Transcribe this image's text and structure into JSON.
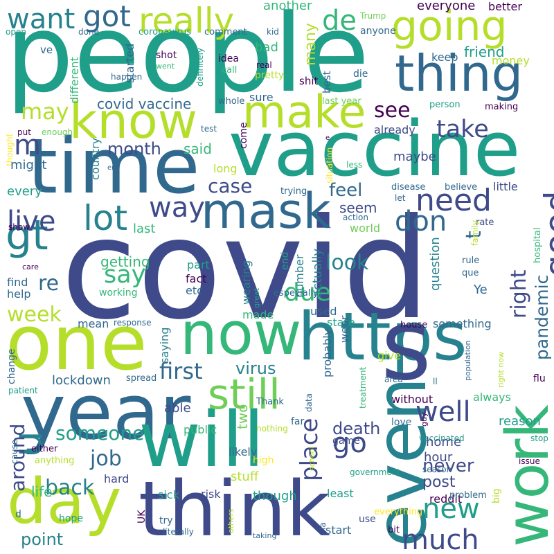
{
  "title": "Word cloud",
  "palette": {
    "dark_purple": "#440154",
    "indigo": "#3e4a89",
    "blue": "#31688e",
    "teal_blue": "#26828e",
    "teal": "#1f9e89",
    "green": "#35b779",
    "lime": "#6ece58",
    "yellow_green": "#b5de2b",
    "yellow": "#fde725"
  },
  "words": [
    {
      "text": "covid",
      "color": "#3e4a89"
    },
    {
      "text": "people",
      "color": "#1f9e89"
    },
    {
      "text": "vaccine",
      "color": "#1f9e89"
    },
    {
      "text": "time",
      "color": "#31688e"
    },
    {
      "text": "year",
      "color": "#31688e"
    },
    {
      "text": "will",
      "color": "#1f9e89"
    },
    {
      "text": "think",
      "color": "#3e4a89"
    },
    {
      "text": "https",
      "color": "#26828e"
    },
    {
      "text": "one",
      "color": "#b5de2b"
    },
    {
      "text": "now",
      "color": "#35b779"
    },
    {
      "text": "s",
      "color": "#3e4a89"
    },
    {
      "text": "even",
      "color": "#26828e"
    },
    {
      "text": "work",
      "color": "#35b779"
    },
    {
      "text": "day",
      "color": "#b5de2b"
    },
    {
      "text": "still",
      "color": "#6ece58"
    },
    {
      "text": "mask",
      "color": "#31688e"
    },
    {
      "text": "know",
      "color": "#b5de2b"
    },
    {
      "text": "make",
      "color": "#b5de2b"
    },
    {
      "text": "thing",
      "color": "#31688e"
    },
    {
      "text": "going",
      "color": "#b5de2b"
    },
    {
      "text": "gt",
      "color": "#26828e"
    },
    {
      "text": "u",
      "color": "#26828e"
    },
    {
      "text": "really",
      "color": "#b5de2b"
    },
    {
      "text": "want",
      "color": "#26828e"
    },
    {
      "text": "got",
      "color": "#31688e"
    },
    {
      "text": "de",
      "color": "#35b779"
    },
    {
      "text": "lot",
      "color": "#26828e"
    },
    {
      "text": "live",
      "color": "#3e4a89"
    },
    {
      "text": "way",
      "color": "#3e4a89"
    },
    {
      "text": "need",
      "color": "#3e4a89"
    },
    {
      "text": "t",
      "color": "#31688e"
    },
    {
      "text": "don",
      "color": "#31688e"
    },
    {
      "text": "good",
      "color": "#3e4a89"
    },
    {
      "text": "see",
      "color": "#440154"
    },
    {
      "text": "take",
      "color": "#3e4a89"
    },
    {
      "text": "m",
      "color": "#3e4a89"
    },
    {
      "text": "may",
      "color": "#b5de2b"
    },
    {
      "text": "covid vaccine",
      "color": "#31688e"
    },
    {
      "text": "first",
      "color": "#31688e"
    },
    {
      "text": "much",
      "color": "#3e4a89"
    },
    {
      "text": "well",
      "color": "#3e4a89"
    },
    {
      "text": "new",
      "color": "#1f9e89"
    },
    {
      "text": "go",
      "color": "#3e4a89"
    },
    {
      "text": "someone",
      "color": "#1f9e89"
    },
    {
      "text": "around",
      "color": "#3e4a89"
    },
    {
      "text": "due",
      "color": "#35b779"
    },
    {
      "text": "say",
      "color": "#35b779"
    },
    {
      "text": "re",
      "color": "#31688e"
    },
    {
      "text": "week",
      "color": "#b5de2b"
    },
    {
      "text": "job",
      "color": "#31688e"
    },
    {
      "text": "back",
      "color": "#26828e"
    },
    {
      "text": "point",
      "color": "#26828e"
    },
    {
      "text": "place",
      "color": "#3e4a89"
    },
    {
      "text": "virus",
      "color": "#26828e"
    },
    {
      "text": "look",
      "color": "#26828e"
    },
    {
      "text": "feel",
      "color": "#31688e"
    },
    {
      "text": "case",
      "color": "#3e4a89"
    },
    {
      "text": "month",
      "color": "#3e4a89"
    },
    {
      "text": "said",
      "color": "#35b779"
    },
    {
      "text": "right",
      "color": "#3e4a89"
    },
    {
      "text": "pandemic",
      "color": "#31688e"
    },
    {
      "text": "never",
      "color": "#3e4a89"
    },
    {
      "text": "death",
      "color": "#3e4a89"
    },
    {
      "text": "life",
      "color": "#35b779"
    },
    {
      "text": "post",
      "color": "#3e4a89"
    },
    {
      "text": "another",
      "color": "#35b779"
    },
    {
      "text": "everyone",
      "color": "#440154"
    },
    {
      "text": "better",
      "color": "#440154"
    },
    {
      "text": "Trump",
      "color": "#6ece58"
    },
    {
      "text": "anyone",
      "color": "#31688e"
    },
    {
      "text": "open",
      "color": "#1f9e89"
    },
    {
      "text": "done",
      "color": "#31688e"
    },
    {
      "text": "coronavirus",
      "color": "#1f9e89"
    },
    {
      "text": "comment",
      "color": "#31688e"
    },
    {
      "text": "kid",
      "color": "#31688e"
    },
    {
      "text": "ve",
      "color": "#31688e"
    },
    {
      "text": "different",
      "color": "#35b779"
    },
    {
      "text": "started",
      "color": "#31688e"
    },
    {
      "text": "shot",
      "color": "#440154"
    },
    {
      "text": "went",
      "color": "#35b779"
    },
    {
      "text": "definitely",
      "color": "#1f9e89"
    },
    {
      "text": "idea",
      "color": "#440154"
    },
    {
      "text": "call",
      "color": "#35b779"
    },
    {
      "text": "real",
      "color": "#440154"
    },
    {
      "text": "pretty",
      "color": "#b5de2b"
    },
    {
      "text": "shit",
      "color": "#440154"
    },
    {
      "text": "bad",
      "color": "#35b779"
    },
    {
      "text": "many",
      "color": "#b5de2b"
    },
    {
      "text": "best",
      "color": "#31688e"
    },
    {
      "text": "die",
      "color": "#31688e"
    },
    {
      "text": "keep",
      "color": "#31688e"
    },
    {
      "text": "friend",
      "color": "#1f9e89"
    },
    {
      "text": "money",
      "color": "#b5de2b"
    },
    {
      "text": "happen",
      "color": "#31688e"
    },
    {
      "text": "whole",
      "color": "#31688e"
    },
    {
      "text": "sure",
      "color": "#31688e"
    },
    {
      "text": "last year",
      "color": "#6ece58"
    },
    {
      "text": "person",
      "color": "#1f9e89"
    },
    {
      "text": "making",
      "color": "#440154"
    },
    {
      "text": "put",
      "color": "#440154"
    },
    {
      "text": "enough",
      "color": "#6ece58"
    },
    {
      "text": "test",
      "color": "#31688e"
    },
    {
      "text": "come",
      "color": "#440154"
    },
    {
      "text": "already",
      "color": "#3e4a89"
    },
    {
      "text": "e",
      "color": "#440154"
    },
    {
      "text": "thought",
      "color": "#fde725"
    },
    {
      "text": "might",
      "color": "#31688e"
    },
    {
      "text": "en",
      "color": "#31688e"
    },
    {
      "text": "country",
      "color": "#26828e"
    },
    {
      "text": "long",
      "color": "#b5de2b"
    },
    {
      "text": "less",
      "color": "#35b779"
    },
    {
      "text": "maybe",
      "color": "#3e4a89"
    },
    {
      "text": "situation",
      "color": "#fde725"
    },
    {
      "text": "every",
      "color": "#1f9e89"
    },
    {
      "text": "trying",
      "color": "#31688e"
    },
    {
      "text": "disease",
      "color": "#31688e"
    },
    {
      "text": "believe",
      "color": "#31688e"
    },
    {
      "text": "little",
      "color": "#3e4a89"
    },
    {
      "text": "let",
      "color": "#31688e"
    },
    {
      "text": "seem",
      "color": "#3e4a89"
    },
    {
      "text": "action",
      "color": "#31688e"
    },
    {
      "text": "rate",
      "color": "#3e4a89"
    },
    {
      "text": "show",
      "color": "#440154"
    },
    {
      "text": "last",
      "color": "#35b779"
    },
    {
      "text": "world",
      "color": "#6ece58"
    },
    {
      "text": "hospital",
      "color": "#35b779"
    },
    {
      "text": "family",
      "color": "#b5de2b"
    },
    {
      "text": "part",
      "color": "#1f9e89"
    },
    {
      "text": "getting",
      "color": "#35b779"
    },
    {
      "text": "end",
      "color": "#1f9e89"
    },
    {
      "text": "number",
      "color": "#26828e"
    },
    {
      "text": "actually",
      "color": "#26828e"
    },
    {
      "text": "question",
      "color": "#26828e"
    },
    {
      "text": "rule",
      "color": "#31688e"
    },
    {
      "text": "que",
      "color": "#31688e"
    },
    {
      "text": "care",
      "color": "#440154"
    },
    {
      "text": "find",
      "color": "#31688e"
    },
    {
      "text": "fact",
      "color": "#440154"
    },
    {
      "text": "etc",
      "color": "#31688e"
    },
    {
      "text": "wearing",
      "color": "#26828e"
    },
    {
      "text": "especially",
      "color": "#31688e"
    },
    {
      "text": "help",
      "color": "#31688e"
    },
    {
      "text": "working",
      "color": "#35b779"
    },
    {
      "text": "great",
      "color": "#1f9e89"
    },
    {
      "text": "used",
      "color": "#31688e"
    },
    {
      "text": "Ye",
      "color": "#31688e"
    },
    {
      "text": "made",
      "color": "#35b779"
    },
    {
      "text": "mean",
      "color": "#31688e"
    },
    {
      "text": "response",
      "color": "#31688e"
    },
    {
      "text": "state",
      "color": "#1f9e89"
    },
    {
      "text": "something",
      "color": "#31688e"
    },
    {
      "text": "house",
      "color": "#440154"
    },
    {
      "text": "saying",
      "color": "#26828e"
    },
    {
      "text": "change",
      "color": "#31688e"
    },
    {
      "text": "wear",
      "color": "#31688e"
    },
    {
      "text": "give",
      "color": "#b5de2b"
    },
    {
      "text": "population",
      "color": "#31688e"
    },
    {
      "text": "right now",
      "color": "#b5de2b"
    },
    {
      "text": "lockdown",
      "color": "#31688e"
    },
    {
      "text": "spread",
      "color": "#31688e"
    },
    {
      "text": "patient",
      "color": "#1f9e89"
    },
    {
      "text": "treatment",
      "color": "#35b779"
    },
    {
      "text": "area",
      "color": "#31688e"
    },
    {
      "text": "ll",
      "color": "#31688e"
    },
    {
      "text": "flu",
      "color": "#440154"
    },
    {
      "text": "probably",
      "color": "#31688e"
    },
    {
      "text": "always",
      "color": "#35b779"
    },
    {
      "text": "Thank",
      "color": "#31688e"
    },
    {
      "text": "data",
      "color": "#31688e"
    },
    {
      "text": "able",
      "color": "#3e4a89"
    },
    {
      "text": "without",
      "color": "#440154"
    },
    {
      "text": "two",
      "color": "#6ece58"
    },
    {
      "text": "far",
      "color": "#31688e"
    },
    {
      "text": "reason",
      "color": "#1f9e89"
    },
    {
      "text": "love",
      "color": "#31688e"
    },
    {
      "text": "guy",
      "color": "#440154"
    },
    {
      "text": "stop",
      "color": "#1f9e89"
    },
    {
      "text": "public",
      "color": "#35b779"
    },
    {
      "text": "nothing",
      "color": "#b5de2b"
    },
    {
      "text": "vaccinated",
      "color": "#1f9e89"
    },
    {
      "text": "cause",
      "color": "#31688e"
    },
    {
      "text": "either",
      "color": "#440154"
    },
    {
      "text": "anything",
      "color": "#b5de2b"
    },
    {
      "text": "game",
      "color": "#3e4a89"
    },
    {
      "text": "home",
      "color": "#3e4a89"
    },
    {
      "text": "hour",
      "color": "#3e4a89"
    },
    {
      "text": "likely",
      "color": "#31688e"
    },
    {
      "text": "high",
      "color": "#fde725"
    },
    {
      "text": "school",
      "color": "#b5de2b"
    },
    {
      "text": "season",
      "color": "#31688e"
    },
    {
      "text": "issue",
      "color": "#440154"
    },
    {
      "text": "hard",
      "color": "#3e4a89"
    },
    {
      "text": "stuff",
      "color": "#b5de2b"
    },
    {
      "text": "government",
      "color": "#1f9e89"
    },
    {
      "text": "big",
      "color": "#b5de2b"
    },
    {
      "text": "sick",
      "color": "#1f9e89"
    },
    {
      "text": "risk",
      "color": "#3e4a89"
    },
    {
      "text": "though",
      "color": "#1f9e89"
    },
    {
      "text": "least",
      "color": "#1f9e89"
    },
    {
      "text": "reddit",
      "color": "#440154"
    },
    {
      "text": "problem",
      "color": "#31688e"
    },
    {
      "text": "UK",
      "color": "#440154"
    },
    {
      "text": "d",
      "color": "#31688e"
    },
    {
      "text": "hope",
      "color": "#1f9e89"
    },
    {
      "text": "try",
      "color": "#31688e"
    },
    {
      "text": "literally",
      "color": "#31688e"
    },
    {
      "text": "others",
      "color": "#b5de2b"
    },
    {
      "text": "everything",
      "color": "#fde725"
    },
    {
      "text": "la",
      "color": "#31688e"
    },
    {
      "text": "taking",
      "color": "#31688e"
    },
    {
      "text": "use",
      "color": "#3e4a89"
    },
    {
      "text": "start",
      "color": "#31688e"
    },
    {
      "text": "bit",
      "color": "#440154"
    }
  ]
}
